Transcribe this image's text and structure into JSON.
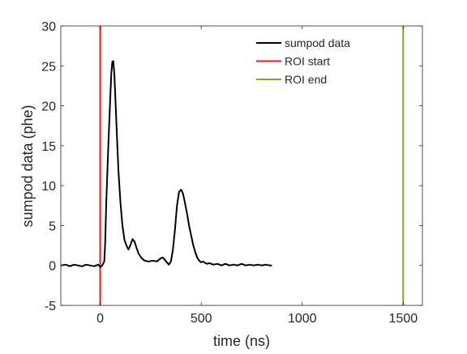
{
  "chart_data": {
    "type": "line",
    "title": "",
    "xlabel": "time (ns)",
    "ylabel": "sumpod data (phe)",
    "xlim": [
      -195,
      1595
    ],
    "ylim": [
      -5,
      30
    ],
    "xticks": [
      0,
      500,
      1000,
      1500
    ],
    "yticks": [
      -5,
      0,
      5,
      10,
      15,
      20,
      25,
      30
    ],
    "xtick_labels": [
      "0",
      "500",
      "1000",
      "1500"
    ],
    "ytick_labels": [
      "-5",
      "0",
      "5",
      "10",
      "15",
      "20",
      "25",
      "30"
    ],
    "grid": false,
    "legend_position": "top-right",
    "series": [
      {
        "name": "sumpod data",
        "color": "#000000",
        "x": [
          -195,
          -170,
          -150,
          -130,
          -110,
          -90,
          -70,
          -50,
          -30,
          -10,
          0,
          10,
          20,
          25,
          30,
          40,
          50,
          55,
          60,
          65,
          70,
          75,
          80,
          90,
          100,
          110,
          120,
          130,
          140,
          150,
          160,
          170,
          180,
          190,
          200,
          210,
          220,
          240,
          260,
          280,
          300,
          310,
          320,
          330,
          340,
          350,
          360,
          370,
          380,
          390,
          400,
          410,
          420,
          430,
          440,
          450,
          460,
          470,
          480,
          490,
          500,
          510,
          520,
          530,
          540,
          560,
          580,
          600,
          620,
          640,
          660,
          680,
          700,
          720,
          740,
          760,
          780,
          800,
          820,
          840,
          850
        ],
        "y": [
          0.0,
          0.1,
          -0.1,
          0.1,
          0.0,
          -0.1,
          0.1,
          0.0,
          -0.1,
          0.1,
          -0.2,
          0.0,
          0.5,
          3.0,
          8.0,
          15.0,
          21.0,
          24.0,
          25.5,
          25.6,
          24.0,
          21.0,
          18.0,
          12.0,
          8.0,
          5.0,
          3.2,
          2.5,
          2.0,
          2.6,
          3.3,
          3.0,
          2.2,
          1.5,
          1.1,
          0.8,
          0.6,
          0.5,
          0.6,
          0.5,
          0.9,
          1.0,
          0.7,
          0.4,
          0.1,
          0.5,
          2.0,
          4.5,
          7.5,
          9.2,
          9.5,
          9.0,
          7.8,
          6.5,
          5.0,
          3.8,
          2.6,
          1.7,
          1.0,
          0.6,
          0.4,
          0.5,
          0.3,
          0.2,
          0.3,
          0.1,
          0.2,
          0.0,
          0.2,
          0.0,
          0.1,
          0.0,
          0.2,
          0.0,
          0.1,
          0.0,
          0.1,
          0.0,
          0.1,
          0.0,
          0.0
        ]
      },
      {
        "name": "ROI start",
        "color": "#e41a1c",
        "x": [
          0,
          0
        ],
        "y": [
          -5,
          30
        ]
      },
      {
        "name": "ROI end",
        "color": "#77ac30",
        "x": [
          1500,
          1500
        ],
        "y": [
          -5,
          30
        ]
      }
    ]
  }
}
